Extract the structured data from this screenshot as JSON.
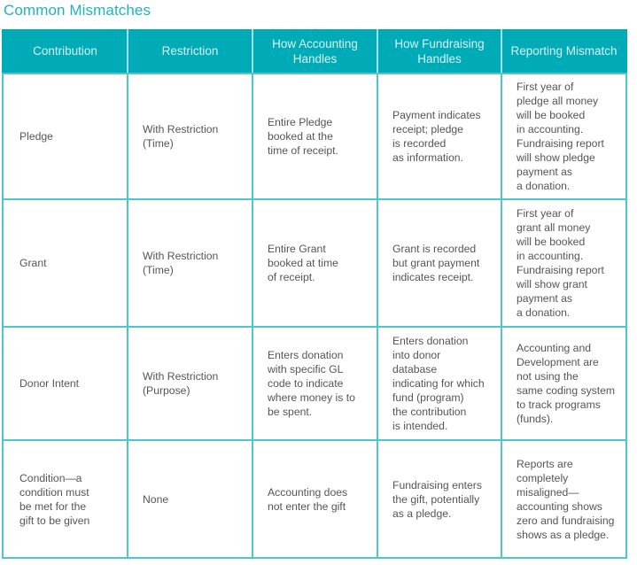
{
  "title": "Common Mismatches",
  "table": {
    "headers": [
      "Contribution",
      "Restriction",
      "How Accounting\nHandles",
      "How Fundraising\nHandles",
      "Reporting Mismatch"
    ],
    "rows": [
      {
        "contribution": "Pledge",
        "restriction": "With Restriction\n(Time)",
        "accounting": "Entire Pledge\nbooked at the\ntime of receipt.",
        "fundraising": "Payment indicates\nreceipt; pledge\nis recorded\nas information.",
        "mismatch": "First year of\npledge all money\nwill be booked\nin accounting.\nFundraising report\nwill show pledge\npayment as\na donation."
      },
      {
        "contribution": "Grant",
        "restriction": "With Restriction\n(Time)",
        "accounting": "Entire Grant\nbooked at time\nof receipt.",
        "fundraising": "Grant is recorded\nbut grant payment\nindicates receipt.",
        "mismatch": "First year of\ngrant all money\nwill be booked\nin accounting.\nFundraising report\nwill show grant\npayment as\na donation."
      },
      {
        "contribution": "Donor Intent",
        "restriction": "With Restriction\n(Purpose)",
        "accounting": "Enters donation\nwith specific GL\ncode to indicate\nwhere money is to\nbe spent.",
        "fundraising": "Enters donation\ninto donor\ndatabase\nindicating for which\nfund (program)\nthe contribution\nis intended.",
        "mismatch": "Accounting and\nDevelopment are\nnot using the\nsame coding system\nto track programs\n(funds)."
      },
      {
        "contribution": "Condition—a\ncondition must\nbe met for the\ngift to be given",
        "restriction": "None",
        "accounting": "Accounting does\nnot enter the gift",
        "fundraising": "Fundraising enters\nthe gift, potentially\nas a pledge.",
        "mismatch": "Reports are\ncompletely\nmisaligned—\naccounting shows\nzero and fundraising\nshows as a pledge."
      }
    ]
  },
  "colors": {
    "title": "#1fb3c0",
    "header_bg": "#00abb8",
    "header_text": "#d6f3f5",
    "border": "#4cc6cf",
    "body_text": "#555555"
  }
}
